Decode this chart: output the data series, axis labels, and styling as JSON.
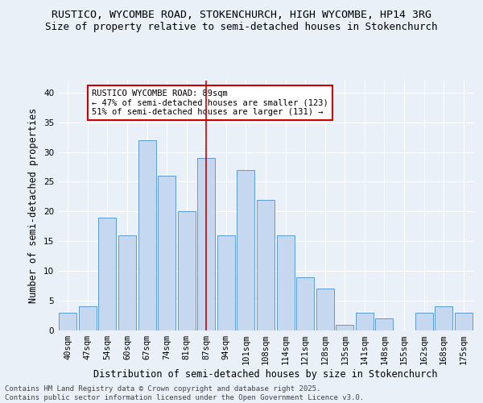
{
  "title": "RUSTICO, WYCOMBE ROAD, STOKENCHURCH, HIGH WYCOMBE, HP14 3RG",
  "subtitle": "Size of property relative to semi-detached houses in Stokenchurch",
  "xlabel": "Distribution of semi-detached houses by size in Stokenchurch",
  "ylabel": "Number of semi-detached properties",
  "categories": [
    "40sqm",
    "47sqm",
    "54sqm",
    "60sqm",
    "67sqm",
    "74sqm",
    "81sqm",
    "87sqm",
    "94sqm",
    "101sqm",
    "108sqm",
    "114sqm",
    "121sqm",
    "128sqm",
    "135sqm",
    "141sqm",
    "148sqm",
    "155sqm",
    "162sqm",
    "168sqm",
    "175sqm"
  ],
  "values": [
    3,
    4,
    19,
    16,
    32,
    26,
    20,
    29,
    16,
    27,
    22,
    16,
    9,
    7,
    1,
    3,
    2,
    0,
    3,
    4,
    3
  ],
  "bar_color": "#c5d8f0",
  "bar_edge_color": "#5b9bd5",
  "highlight_index": 7,
  "highlight_line_color": "#cc0000",
  "annotation_text": "RUSTICO WYCOMBE ROAD: 89sqm\n← 47% of semi-detached houses are smaller (123)\n51% of semi-detached houses are larger (131) →",
  "annotation_box_color": "#ffffff",
  "annotation_box_edge": "#cc0000",
  "ylim": [
    0,
    42
  ],
  "yticks": [
    0,
    5,
    10,
    15,
    20,
    25,
    30,
    35,
    40
  ],
  "footnote": "Contains HM Land Registry data © Crown copyright and database right 2025.\nContains public sector information licensed under the Open Government Licence v3.0.",
  "background_color": "#eaf0f8",
  "grid_color": "#ffffff",
  "title_fontsize": 9.5,
  "subtitle_fontsize": 9,
  "axis_label_fontsize": 8.5,
  "tick_fontsize": 7.5,
  "annotation_fontsize": 7.5,
  "footnote_fontsize": 6.5
}
